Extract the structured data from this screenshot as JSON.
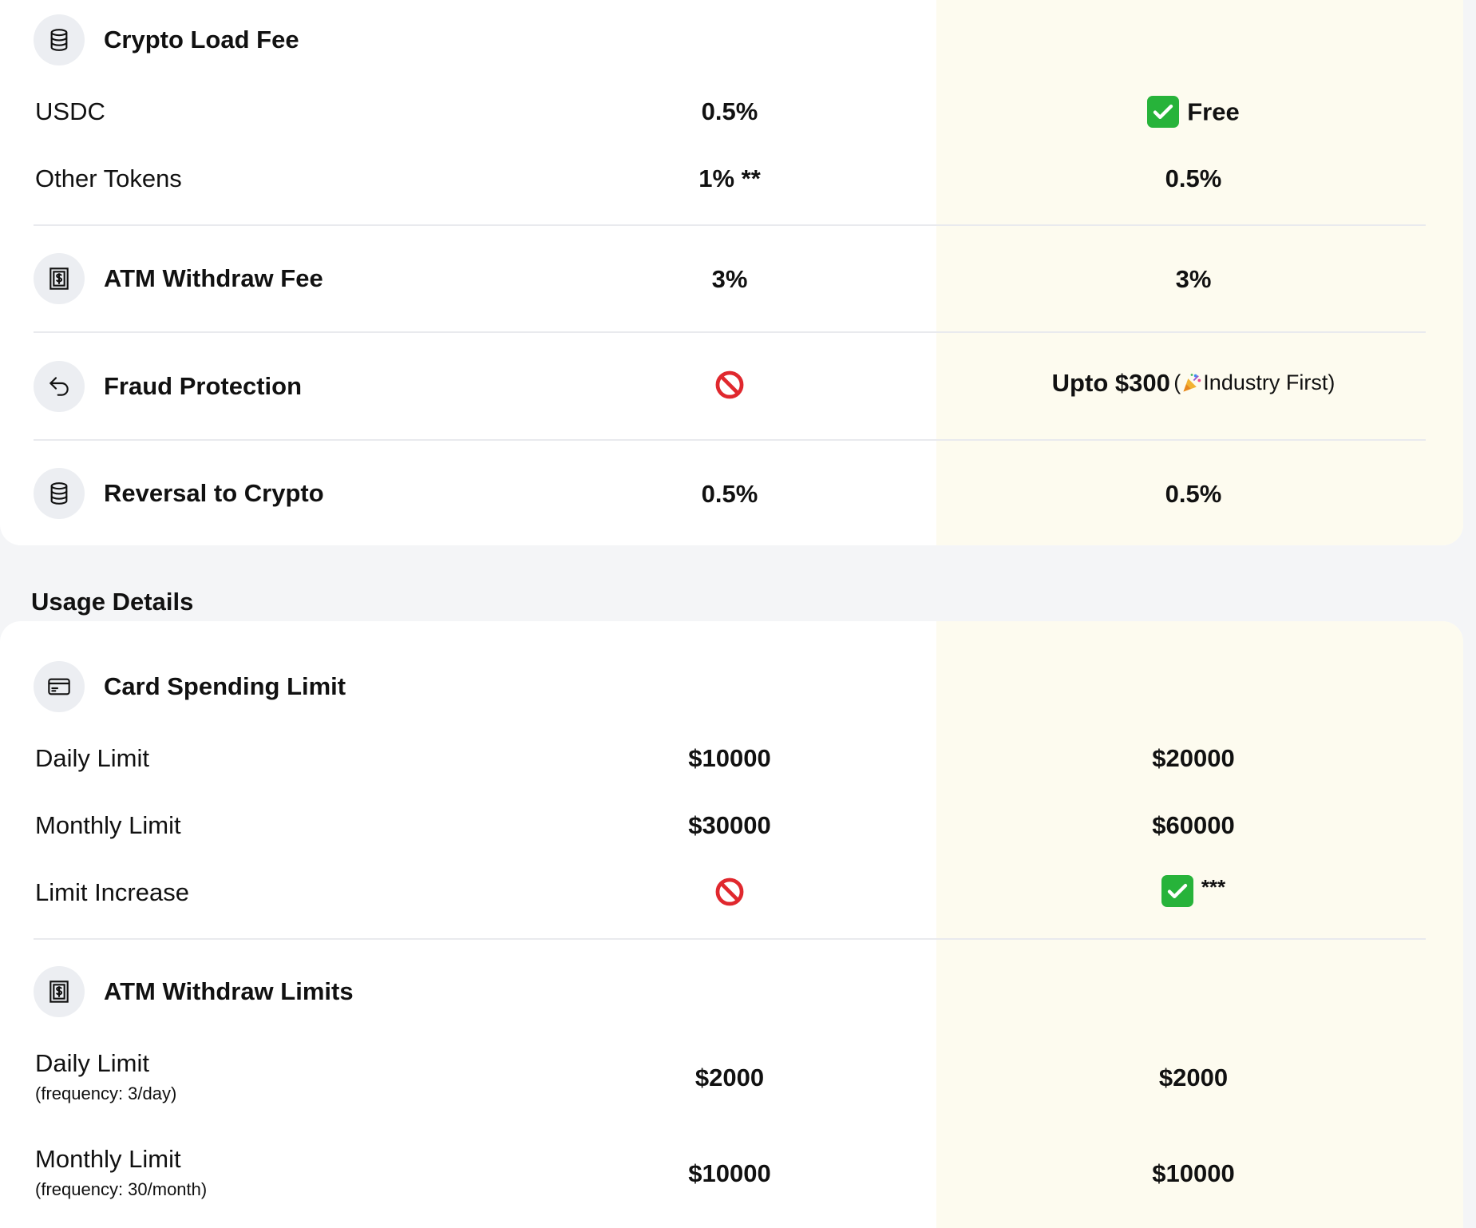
{
  "fees": {
    "crypto_load_fee": {
      "title": "Crypto Load Fee",
      "icon": "database-icon",
      "rows": [
        {
          "label": "USDC",
          "standard": "0.5%",
          "premium": "Free",
          "premium_icon": "check-icon"
        },
        {
          "label": "Other Tokens",
          "standard": "1% **",
          "premium": "0.5%"
        }
      ]
    },
    "atm_withdraw_fee": {
      "title": "ATM Withdraw Fee",
      "icon": "cash-icon",
      "standard": "3%",
      "premium": "3%"
    },
    "fraud_protection": {
      "title": "Fraud Protection",
      "icon": "undo-arrow-icon",
      "standard_icon": "no-entry-icon",
      "premium": "Upto $300",
      "premium_note_open": "(",
      "premium_note_icon": "party-popper-icon",
      "premium_note": "Industry First)"
    },
    "reversal_to_crypto": {
      "title": "Reversal to Crypto",
      "icon": "database-icon",
      "standard": "0.5%",
      "premium": "0.5%"
    }
  },
  "usage": {
    "heading": "Usage Details",
    "card_spending_limit": {
      "title": "Card Spending Limit",
      "icon": "credit-card-icon",
      "rows": [
        {
          "label": "Daily Limit",
          "standard": "$10000",
          "premium": "$20000"
        },
        {
          "label": "Monthly Limit",
          "standard": "$30000",
          "premium": "$60000"
        },
        {
          "label": "Limit Increase",
          "standard_icon": "no-entry-icon",
          "premium_icon": "check-icon",
          "premium": "***"
        }
      ]
    },
    "atm_withdraw_limits": {
      "title": "ATM Withdraw Limits",
      "icon": "cash-icon",
      "rows": [
        {
          "label": "Daily Limit",
          "sublabel": "(frequency: 3/day)",
          "standard": "$2000",
          "premium": "$2000"
        },
        {
          "label": "Monthly Limit",
          "sublabel": "(frequency: 30/month)",
          "standard": "$10000",
          "premium": "$10000"
        }
      ]
    }
  },
  "colors": {
    "highlight_column": "#fdfbef",
    "icon_bg": "#eceef2",
    "check_green": "#27b33a",
    "no_entry_red": "#e0282e",
    "page_bg": "#f4f5f7"
  }
}
